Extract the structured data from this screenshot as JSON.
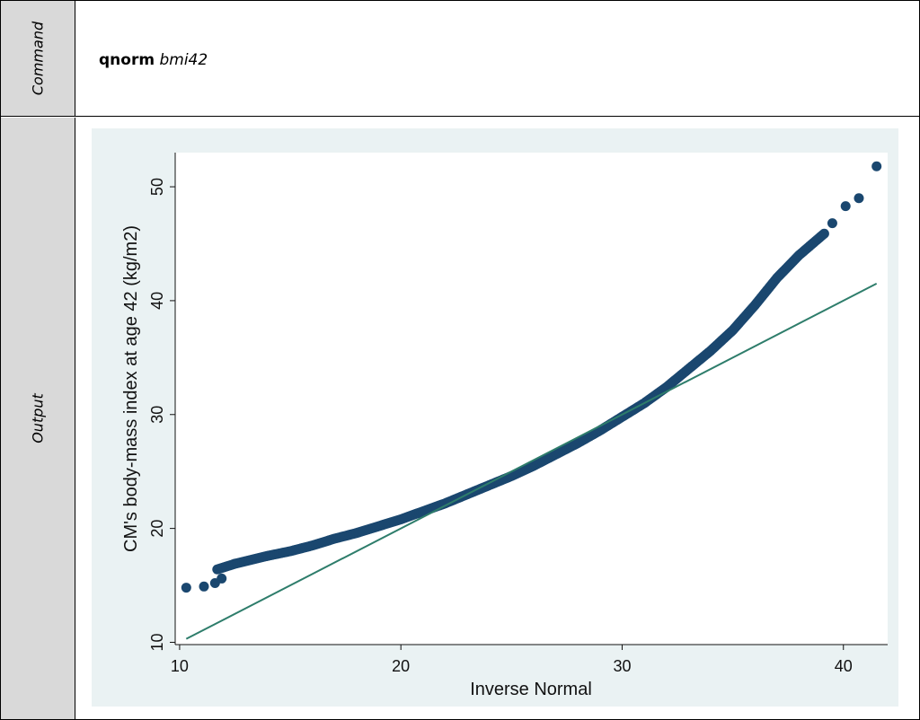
{
  "row_labels": {
    "command": "Command",
    "output": "Output"
  },
  "command": {
    "name": "qnorm",
    "arg": "bmi42"
  },
  "chart_data": {
    "type": "scatter",
    "title": "",
    "xlabel": "Inverse Normal",
    "ylabel": "CM's body-mass index at age 42 (kg/m2)",
    "xlim": [
      9.8,
      42
    ],
    "ylim": [
      9.8,
      53
    ],
    "xticks": [
      10,
      20,
      30,
      40
    ],
    "yticks": [
      10,
      20,
      30,
      40,
      50
    ],
    "grid": false,
    "colors": {
      "points": "#1a476f",
      "line": "#2e7d6b",
      "background": "#eaf2f3",
      "plot": "#ffffff"
    },
    "reference_line": {
      "x": [
        10.3,
        41.5
      ],
      "y": [
        10.3,
        41.5
      ]
    },
    "quantile_curve": {
      "x": [
        11.7,
        12.5,
        14,
        15,
        16,
        17,
        18,
        19,
        20,
        21,
        22,
        23,
        24,
        25,
        26,
        27,
        28,
        29,
        30,
        31,
        32,
        33,
        34,
        35,
        36,
        37,
        38,
        39.2
      ],
      "y": [
        16.4,
        16.9,
        17.6,
        18.0,
        18.5,
        19.1,
        19.6,
        20.2,
        20.8,
        21.5,
        22.2,
        23.0,
        23.8,
        24.6,
        25.5,
        26.5,
        27.5,
        28.6,
        29.8,
        31.0,
        32.4,
        34.0,
        35.6,
        37.4,
        39.6,
        42.0,
        44.0,
        46.0
      ]
    },
    "tail_points": {
      "x": [
        10.3,
        11.1,
        11.6,
        11.9,
        39.5,
        40.1,
        40.7,
        41.5
      ],
      "y": [
        14.8,
        14.9,
        15.2,
        15.6,
        46.8,
        48.3,
        49.0,
        51.8
      ]
    }
  }
}
